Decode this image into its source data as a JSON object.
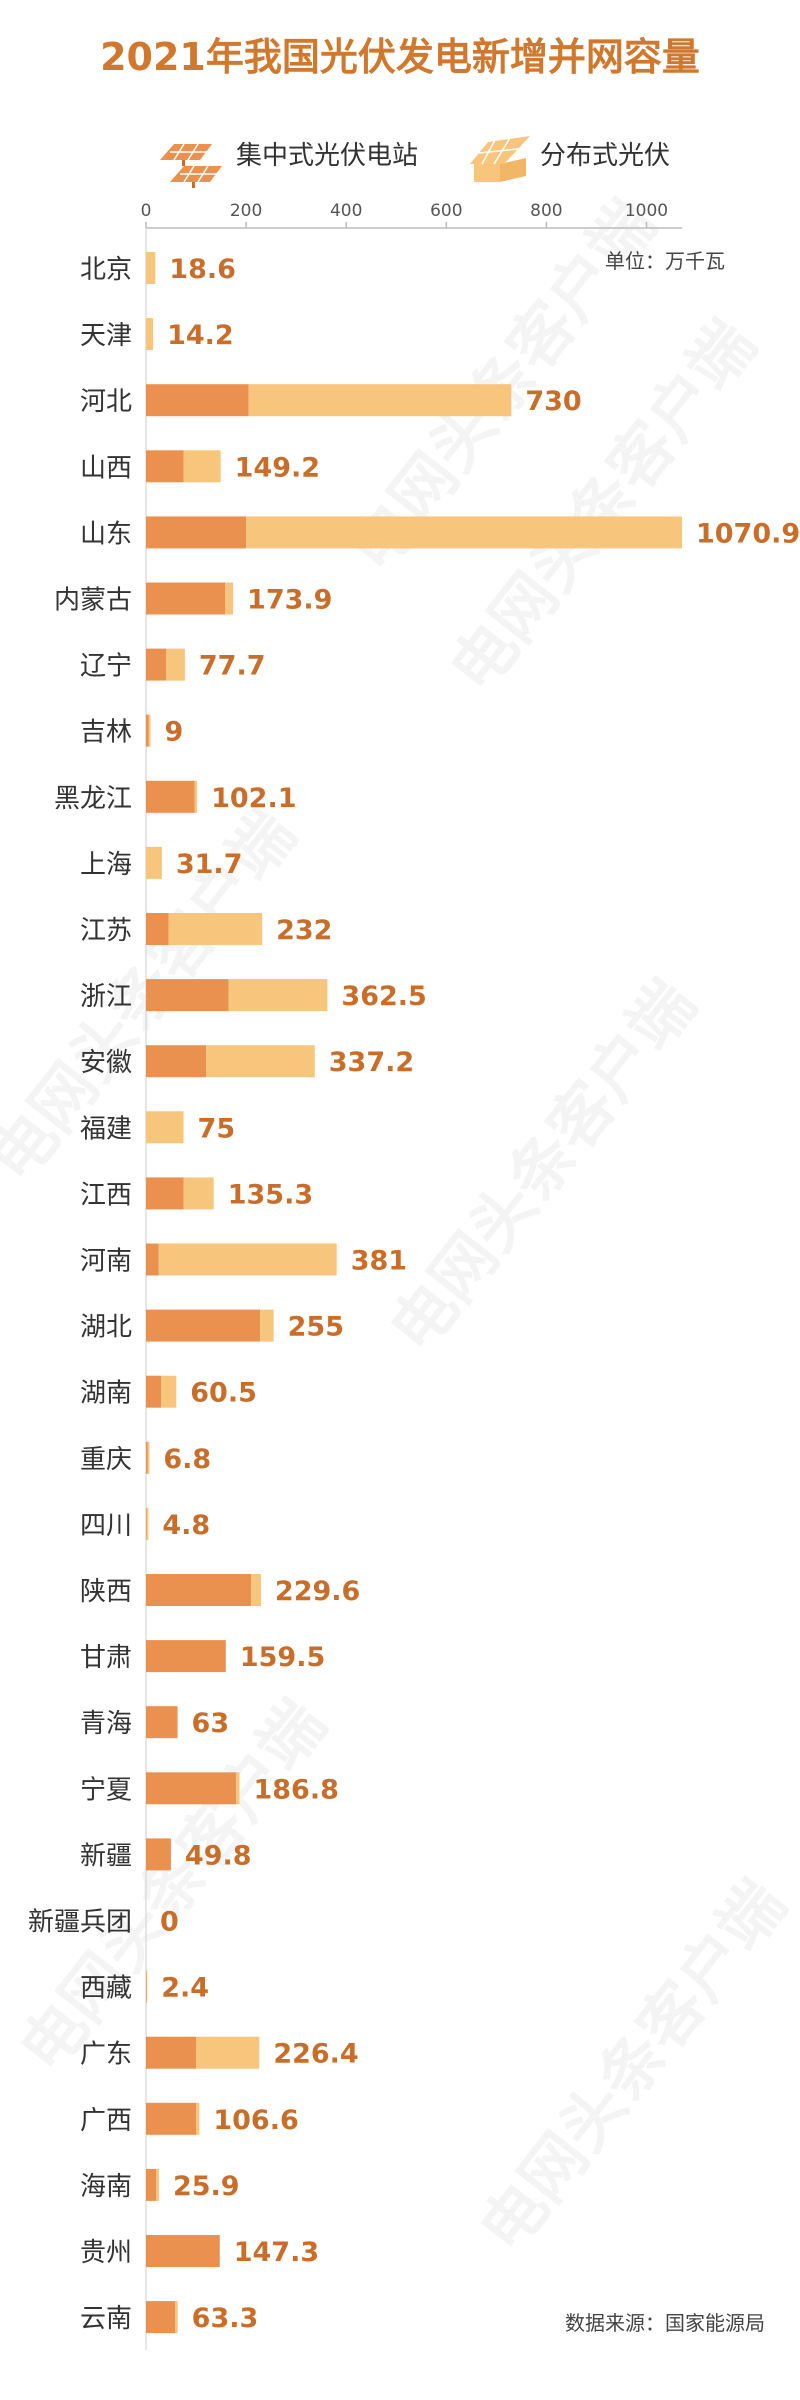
{
  "chart_data": {
    "type": "bar",
    "orientation": "horizontal",
    "stacked": true,
    "title": "2021年我国光伏发电新增并网容量",
    "unit_label": "单位：万千瓦",
    "source": "数据来源：国家能源局",
    "watermark": "电网头条客户端",
    "xlim": [
      0,
      1070.9
    ],
    "xticks": [
      0,
      200,
      400,
      600,
      800,
      1000
    ],
    "legend_position": "top",
    "colors": {
      "centralized": "#EB9150",
      "distributed": "#F7C57C",
      "label": "#C86E2A",
      "title": "#D0782E"
    },
    "categories": [
      "北京",
      "天津",
      "河北",
      "山西",
      "山东",
      "内蒙古",
      "辽宁",
      "吉林",
      "黑龙江",
      "上海",
      "江苏",
      "浙江",
      "安徽",
      "福建",
      "江西",
      "河南",
      "湖北",
      "湖南",
      "重庆",
      "四川",
      "陕西",
      "甘肃",
      "青海",
      "宁夏",
      "新疆",
      "新疆兵团",
      "西藏",
      "广东",
      "广西",
      "海南",
      "贵州",
      "云南"
    ],
    "totals": [
      "18.6",
      "14.2",
      "730",
      "149.2",
      "1070.9",
      "173.9",
      "77.7",
      "9",
      "102.1",
      "31.7",
      "232",
      "362.5",
      "337.2",
      "75",
      "135.3",
      "381",
      "255",
      "60.5",
      "6.8",
      "4.8",
      "229.6",
      "159.5",
      "63",
      "186.8",
      "49.8",
      "0",
      "2.4",
      "226.4",
      "106.6",
      "25.9",
      "147.3",
      "63.3"
    ],
    "series": [
      {
        "name": "集中式光伏电站",
        "values": [
          0,
          0,
          205,
          75,
          200,
          158,
          40,
          5,
          97,
          0,
          45,
          165,
          120,
          0,
          75,
          25,
          228,
          30,
          3,
          1,
          210,
          159.5,
          63,
          180,
          49.8,
          0,
          1,
          100,
          100,
          20,
          147.3,
          58
        ]
      },
      {
        "name": "分布式光伏",
        "values": [
          18.6,
          14.2,
          525,
          74.2,
          870.9,
          15.9,
          37.7,
          4,
          5.1,
          31.7,
          187,
          197.5,
          217.2,
          75,
          60.3,
          356,
          27,
          30.5,
          3.8,
          3.8,
          19.6,
          0,
          0,
          6.8,
          0,
          0,
          1.4,
          126.4,
          6.6,
          5.9,
          0,
          5.3
        ]
      }
    ]
  }
}
